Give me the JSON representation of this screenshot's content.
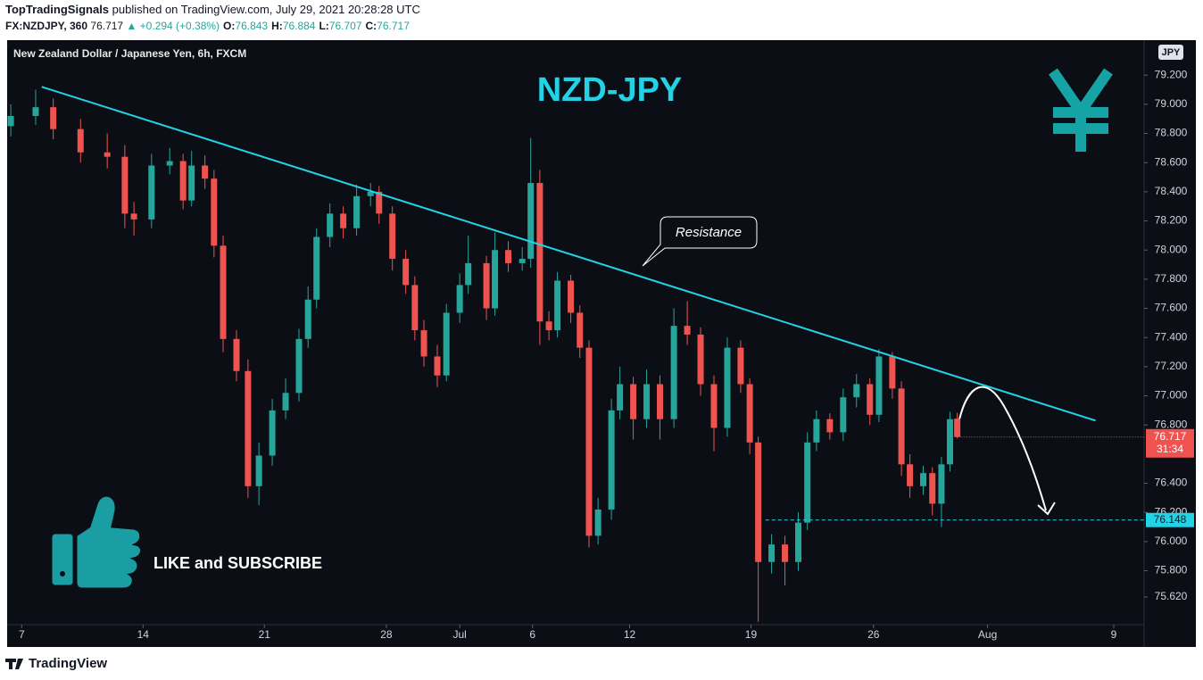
{
  "header": {
    "publisher": "TopTradingSignals",
    "published": "published on TradingView.com, July 29, 2021 20:28:28 UTC",
    "symbol": "FX:NZDJPY, 360",
    "last": "76.717",
    "change": "▲ +0.294 (+0.38%)",
    "ohlc": [
      {
        "label": "O:",
        "value": "76.843"
      },
      {
        "label": "H:",
        "value": "76.884"
      },
      {
        "label": "L:",
        "value": "76.707"
      },
      {
        "label": "C:",
        "value": "76.717"
      }
    ]
  },
  "footer": {
    "brand": "TradingView"
  },
  "chart_data": {
    "type": "candlestick",
    "title": "New Zealand Dollar / Japanese Yen, 6h, FXCM",
    "heading": "NZD-JPY",
    "annotation": "Resistance",
    "cta": "LIKE and SUBSCRIBE",
    "currency_badge": "JPY",
    "countdown": "31:34",
    "up_color": "#26a69a",
    "down_color": "#ef5350",
    "line_color": "#22d3e6",
    "x": [
      0.6,
      4.7,
      7.6,
      12.1,
      16.5,
      19.4,
      20.9,
      23.8,
      26.8,
      29.0,
      30.4,
      32.6,
      34.1,
      35.6,
      37.8,
      39.7,
      41.5,
      43.7,
      45.9,
      48.1,
      49.6,
      51.0,
      53.2,
      55.4,
      57.6,
      59.9,
      61.3,
      63.5,
      65.7,
      67.2,
      68.7,
      70.9,
      72.4,
      74.6,
      76.0,
      79.0,
      80.4,
      82.6,
      84.9,
      86.3,
      87.8,
      89.3,
      90.7,
      92.9,
      94.4,
      95.9,
      97.4,
      99.6,
      101.0,
      103.2,
      105.4,
      107.6,
      109.9,
      112.1,
      114.3,
      116.5,
      118.7,
      120.9,
      122.4,
      123.8,
      126.0,
      128.2,
      130.4,
      131.9,
      133.4,
      135.6,
      137.8,
      140.0,
      142.2,
      143.7,
      145.9,
      147.4,
      148.8,
      151.0,
      152.5,
      154.0,
      155.4,
      156.6
    ],
    "open": [
      78.85,
      78.92,
      78.98,
      78.83,
      78.67,
      78.64,
      78.25,
      78.21,
      78.58,
      78.61,
      78.34,
      78.58,
      78.49,
      78.03,
      77.39,
      77.17,
      76.38,
      76.59,
      76.9,
      77.02,
      77.39,
      77.66,
      78.09,
      78.25,
      78.15,
      78.37,
      78.4,
      78.25,
      77.94,
      77.76,
      77.45,
      77.27,
      77.14,
      77.57,
      77.76,
      77.91,
      77.6,
      78.0,
      77.91,
      77.94,
      78.46,
      77.51,
      77.45,
      77.79,
      77.57,
      77.33,
      76.04,
      76.22,
      76.9,
      77.08,
      76.84,
      77.08,
      76.84,
      77.48,
      77.42,
      77.08,
      76.78,
      77.33,
      77.08,
      76.68,
      75.86,
      75.98,
      75.86,
      76.13,
      76.68,
      76.84,
      76.75,
      76.99,
      77.08,
      76.87,
      77.27,
      77.05,
      76.53,
      76.38,
      76.47,
      76.26,
      76.53,
      76.843
    ],
    "high": [
      79.0,
      79.1,
      79.04,
      78.9,
      78.8,
      78.72,
      78.33,
      78.66,
      78.7,
      78.66,
      78.68,
      78.65,
      78.55,
      78.1,
      77.45,
      77.25,
      76.68,
      76.98,
      77.12,
      77.46,
      77.75,
      78.15,
      78.32,
      78.3,
      78.45,
      78.46,
      78.44,
      78.3,
      78.0,
      77.82,
      77.52,
      77.35,
      77.63,
      77.84,
      78.1,
      77.96,
      78.12,
      78.06,
      78.02,
      78.77,
      78.55,
      77.58,
      77.85,
      77.83,
      77.62,
      77.38,
      76.3,
      76.98,
      77.2,
      77.13,
      77.18,
      77.14,
      77.6,
      77.65,
      77.47,
      77.14,
      77.4,
      77.38,
      77.12,
      76.72,
      76.05,
      76.04,
      76.2,
      76.75,
      76.9,
      76.88,
      77.05,
      77.15,
      77.12,
      77.32,
      77.3,
      77.1,
      76.6,
      76.52,
      76.51,
      76.58,
      76.89,
      76.884
    ],
    "low": [
      78.78,
      78.86,
      78.76,
      78.6,
      78.56,
      78.15,
      78.1,
      78.15,
      78.52,
      78.28,
      78.3,
      78.42,
      77.95,
      77.3,
      77.1,
      76.3,
      76.25,
      76.52,
      76.84,
      76.96,
      77.33,
      77.6,
      78.02,
      78.08,
      78.1,
      78.3,
      78.18,
      77.86,
      77.7,
      77.38,
      77.2,
      77.06,
      77.1,
      77.5,
      77.7,
      77.52,
      77.55,
      77.85,
      77.86,
      77.88,
      77.35,
      77.38,
      77.4,
      77.5,
      77.26,
      75.96,
      75.98,
      76.15,
      76.84,
      76.7,
      76.78,
      76.7,
      76.78,
      77.35,
      77.0,
      76.62,
      76.72,
      77.02,
      76.6,
      75.45,
      75.78,
      75.7,
      75.8,
      76.08,
      76.62,
      76.7,
      76.69,
      76.92,
      76.8,
      76.82,
      76.98,
      76.45,
      76.3,
      76.32,
      76.18,
      76.1,
      76.48,
      76.707
    ],
    "close": [
      78.92,
      78.98,
      78.83,
      78.67,
      78.64,
      78.25,
      78.21,
      78.58,
      78.61,
      78.34,
      78.58,
      78.49,
      78.03,
      77.39,
      77.17,
      76.38,
      76.59,
      76.9,
      77.02,
      77.39,
      77.66,
      78.09,
      78.25,
      78.15,
      78.37,
      78.4,
      78.25,
      77.94,
      77.76,
      77.45,
      77.27,
      77.14,
      77.57,
      77.76,
      77.91,
      77.6,
      78.0,
      77.91,
      77.94,
      78.46,
      77.51,
      77.45,
      77.79,
      77.57,
      77.33,
      76.04,
      76.22,
      76.9,
      77.08,
      76.84,
      77.08,
      76.84,
      77.48,
      77.42,
      77.08,
      76.78,
      77.33,
      77.08,
      76.68,
      75.86,
      75.98,
      75.86,
      76.13,
      76.68,
      76.84,
      76.75,
      76.99,
      77.08,
      76.87,
      77.27,
      77.05,
      76.53,
      76.38,
      76.47,
      76.26,
      76.53,
      76.84,
      76.717
    ],
    "last_price": 76.717,
    "support": {
      "value": 76.148,
      "x_start": 125.0
    },
    "trendline": {
      "x": [
        5.7,
        179.4
      ],
      "y": [
        79.12,
        76.83
      ]
    },
    "xlim": [
      0,
      187.4
    ],
    "ylim": [
      75.43,
      79.44
    ],
    "xticks": [
      {
        "value": 2.4,
        "label": "7"
      },
      {
        "value": 22.4,
        "label": "14"
      },
      {
        "value": 42.4,
        "label": "21"
      },
      {
        "value": 62.5,
        "label": "28"
      },
      {
        "value": 74.6,
        "label": "Jul"
      },
      {
        "value": 86.6,
        "label": "6"
      },
      {
        "value": 102.6,
        "label": "12"
      },
      {
        "value": 122.6,
        "label": "19"
      },
      {
        "value": 142.8,
        "label": "26"
      },
      {
        "value": 161.6,
        "label": "Aug"
      },
      {
        "value": 182.4,
        "label": "9"
      }
    ],
    "yticks": [
      {
        "value": 79.2,
        "label": "79.200"
      },
      {
        "value": 79.0,
        "label": "79.000"
      },
      {
        "value": 78.8,
        "label": "78.800"
      },
      {
        "value": 78.6,
        "label": "78.600"
      },
      {
        "value": 78.4,
        "label": "78.400"
      },
      {
        "value": 78.2,
        "label": "78.200"
      },
      {
        "value": 78.0,
        "label": "78.000"
      },
      {
        "value": 77.8,
        "label": "77.800"
      },
      {
        "value": 77.6,
        "label": "77.600"
      },
      {
        "value": 77.4,
        "label": "77.400"
      },
      {
        "value": 77.2,
        "label": "77.200"
      },
      {
        "value": 77.0,
        "label": "77.000"
      },
      {
        "value": 76.8,
        "label": "76.800"
      },
      {
        "value": 76.4,
        "label": "76.400"
      },
      {
        "value": 76.2,
        "label": "76.200"
      },
      {
        "value": 76.0,
        "label": "76.000"
      },
      {
        "value": 75.8,
        "label": "75.800"
      },
      {
        "value": 75.62,
        "label": "75.620"
      }
    ]
  }
}
